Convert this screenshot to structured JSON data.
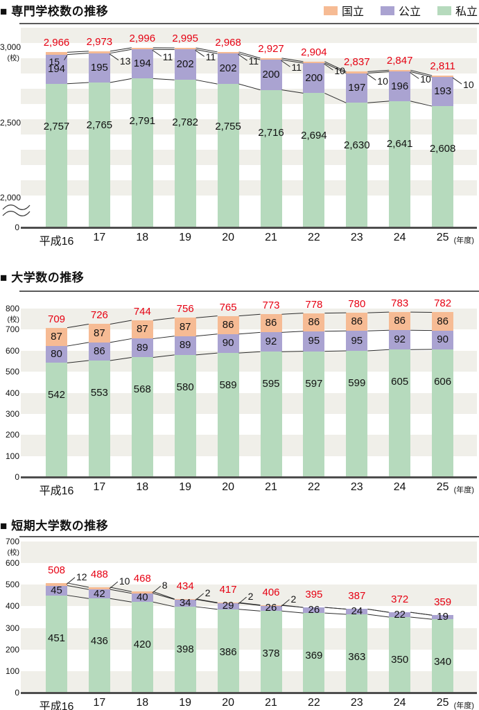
{
  "page": {
    "title_marker": "■",
    "year_axis_suffix": "(年度)"
  },
  "legend": {
    "items": [
      {
        "label": "国立",
        "color": "#f6bb94"
      },
      {
        "label": "公立",
        "color": "#aaa3d1"
      },
      {
        "label": "私立",
        "color": "#b6dabd"
      }
    ]
  },
  "colors": {
    "national": "#f6bb94",
    "public": "#aaa3d1",
    "private": "#b6dabd",
    "total_label": "#e60012",
    "stripe": "#f0efe9",
    "axis": "#4d4d4d",
    "connector": "#2b2b2b"
  },
  "chart_data": [
    {
      "type": "bar",
      "stacked": true,
      "title": "専門学校数の推移",
      "y_axis_unit": "(校)",
      "categories": [
        "平成16",
        "17",
        "18",
        "19",
        "20",
        "21",
        "22",
        "23",
        "24",
        "25"
      ],
      "series": [
        {
          "name": "国立",
          "values": [
            15,
            13,
            11,
            11,
            11,
            11,
            10,
            10,
            10,
            10
          ]
        },
        {
          "name": "公立",
          "values": [
            194,
            195,
            194,
            202,
            202,
            200,
            200,
            197,
            196,
            193
          ]
        },
        {
          "name": "私立",
          "values": [
            2757,
            2765,
            2791,
            2782,
            2755,
            2716,
            2694,
            2630,
            2641,
            2608
          ]
        }
      ],
      "totals": [
        2966,
        2973,
        2996,
        2995,
        2968,
        2927,
        2904,
        2837,
        2847,
        2811
      ],
      "y_ticks": [
        3000,
        2500,
        2000,
        0
      ],
      "ylim": [
        0,
        3000
      ],
      "axis_break": true,
      "grid": "striped",
      "legend_position": "top-right"
    },
    {
      "type": "bar",
      "stacked": true,
      "title": "大学数の推移",
      "y_axis_unit": "(校)",
      "categories": [
        "平成16",
        "17",
        "18",
        "19",
        "20",
        "21",
        "22",
        "23",
        "24",
        "25"
      ],
      "series": [
        {
          "name": "国立",
          "values": [
            87,
            87,
            87,
            87,
            86,
            86,
            86,
            86,
            86,
            86
          ]
        },
        {
          "name": "公立",
          "values": [
            80,
            86,
            89,
            89,
            90,
            92,
            95,
            95,
            92,
            90
          ]
        },
        {
          "name": "私立",
          "values": [
            542,
            553,
            568,
            580,
            589,
            595,
            597,
            599,
            605,
            606
          ]
        }
      ],
      "totals": [
        709,
        726,
        744,
        756,
        765,
        773,
        778,
        780,
        783,
        782
      ],
      "y_ticks": [
        800,
        700,
        600,
        500,
        400,
        300,
        200,
        100,
        0
      ],
      "ylim": [
        0,
        800
      ],
      "axis_break": false,
      "grid": "striped",
      "legend_position": "none"
    },
    {
      "type": "bar",
      "stacked": true,
      "title": "短期大学数の推移",
      "y_axis_unit": "(校)",
      "categories": [
        "平成16",
        "17",
        "18",
        "19",
        "20",
        "21",
        "22",
        "23",
        "24",
        "25"
      ],
      "series": [
        {
          "name": "国立",
          "values": [
            12,
            10,
            8,
            2,
            2,
            2,
            0,
            0,
            0,
            0
          ]
        },
        {
          "name": "公立",
          "values": [
            45,
            42,
            40,
            34,
            29,
            26,
            26,
            24,
            22,
            19
          ]
        },
        {
          "name": "私立",
          "values": [
            451,
            436,
            420,
            398,
            386,
            378,
            369,
            363,
            350,
            340
          ]
        }
      ],
      "totals": [
        508,
        488,
        468,
        434,
        417,
        406,
        395,
        387,
        372,
        359
      ],
      "y_ticks": [
        700,
        600,
        500,
        400,
        300,
        200,
        100,
        0
      ],
      "ylim": [
        0,
        700
      ],
      "axis_break": false,
      "grid": "striped",
      "legend_position": "none"
    }
  ]
}
